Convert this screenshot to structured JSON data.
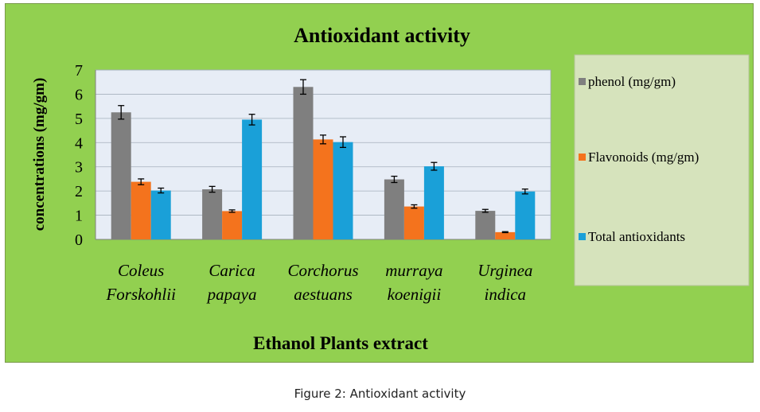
{
  "chart_data": {
    "type": "bar",
    "title": "Antioxidant activity",
    "xlabel": "Ethanol  Plants extract",
    "ylabel": "concentrations (mg/gm)",
    "ylim": [
      0,
      7
    ],
    "yticks": [
      "0",
      "1",
      "2",
      "3",
      "4",
      "5",
      "6",
      "7"
    ],
    "grid": true,
    "legend_position": "right",
    "categories": [
      [
        "Coleus",
        "Forskohlii"
      ],
      [
        "Carica",
        "papaya"
      ],
      [
        "Corchorus",
        "aestuans"
      ],
      [
        "murraya",
        "koenigii"
      ],
      [
        "Urginea",
        "indica"
      ]
    ],
    "series": [
      {
        "name": "phenol (mg/gm)",
        "color": "#7f7f7f",
        "values": [
          5.25,
          2.07,
          6.3,
          2.48,
          1.18
        ],
        "errors": [
          0.28,
          0.12,
          0.3,
          0.13,
          0.06
        ]
      },
      {
        "name": "Flavonoids (mg/gm)",
        "color": "#f4731d",
        "values": [
          2.38,
          1.17,
          4.13,
          1.36,
          0.3
        ],
        "errors": [
          0.12,
          0.05,
          0.18,
          0.07,
          0.02
        ]
      },
      {
        "name": "Total antioxidants",
        "color": "#1aa0d8",
        "values": [
          2.02,
          4.95,
          4.02,
          3.02,
          1.98
        ],
        "errors": [
          0.1,
          0.22,
          0.22,
          0.16,
          0.1
        ]
      }
    ]
  },
  "caption": "Figure 2: Antioxidant activity"
}
